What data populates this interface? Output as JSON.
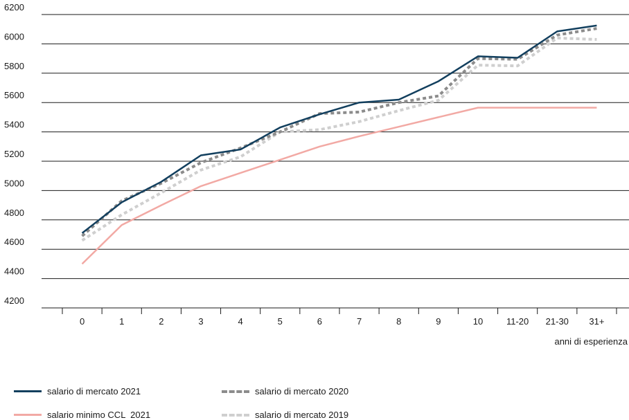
{
  "chart_data": {
    "type": "line",
    "categories": [
      "0",
      "1",
      "2",
      "3",
      "4",
      "5",
      "6",
      "7",
      "8",
      "9",
      "10",
      "11-20",
      "21-30",
      "31+"
    ],
    "xlabel": "anni di esperienza",
    "ylabel": "",
    "ylim": [
      4200,
      6200
    ],
    "yticks": [
      4200,
      4400,
      4600,
      4800,
      5000,
      5200,
      5400,
      5600,
      5800,
      6000,
      6200
    ],
    "grid": "horizontal",
    "legend_position": "bottom-left",
    "series": [
      {
        "name": "salario di mercato 2021",
        "color": "#123f5e",
        "style": "solid",
        "values": [
          4710,
          4920,
          5060,
          5240,
          5280,
          5430,
          5520,
          5600,
          5620,
          5745,
          5915,
          5905,
          6085,
          6125
        ]
      },
      {
        "name": "salario minimo CCL  2021",
        "color": "#f2a9a4",
        "style": "solid",
        "values": [
          4500,
          4765,
          4900,
          5030,
          5120,
          5210,
          5300,
          5370,
          5435,
          5500,
          5565,
          5565,
          5565,
          5565
        ]
      },
      {
        "name": "salario di mercato 2020",
        "color": "#8c8c8c",
        "style": "dashed",
        "values": [
          4690,
          4930,
          5050,
          5190,
          5290,
          5400,
          5525,
          5535,
          5600,
          5645,
          5900,
          5895,
          6060,
          6105
        ]
      },
      {
        "name": "salario di mercato 2019",
        "color": "#cfcfcf",
        "style": "dashed",
        "values": [
          4660,
          4835,
          4985,
          5140,
          5230,
          5400,
          5415,
          5470,
          5545,
          5615,
          5855,
          5850,
          6040,
          6030
        ]
      }
    ]
  }
}
